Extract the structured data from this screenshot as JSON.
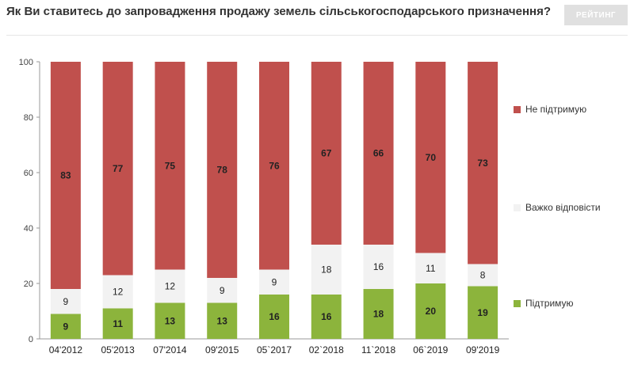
{
  "header": {
    "title": "Як Ви ставитесь до запровадження продажу земель сільськогосподарського призначення?",
    "brand": "РЕЙТИНГ"
  },
  "chart_data": {
    "type": "bar",
    "stacked": true,
    "categories": [
      "04'2012",
      "05'2013",
      "07'2014",
      "09'2015",
      "05`2017",
      "02`2018",
      "11`2018",
      "06`2019",
      "09'2019"
    ],
    "series": [
      {
        "name": "Підтримую",
        "color": "#8cb43c",
        "values": [
          9,
          11,
          13,
          13,
          16,
          16,
          18,
          20,
          19
        ]
      },
      {
        "name": "Важко відповісти",
        "color": "#f2f2f2",
        "values": [
          9,
          12,
          12,
          9,
          9,
          18,
          16,
          11,
          8
        ]
      },
      {
        "name": "Не підтримую",
        "color": "#c0504d",
        "values": [
          83,
          77,
          75,
          78,
          76,
          67,
          66,
          70,
          73
        ]
      }
    ],
    "yticks": [
      0,
      20,
      40,
      60,
      80,
      100
    ],
    "ylim": [
      0,
      100
    ],
    "grid": false,
    "legend": "right"
  }
}
